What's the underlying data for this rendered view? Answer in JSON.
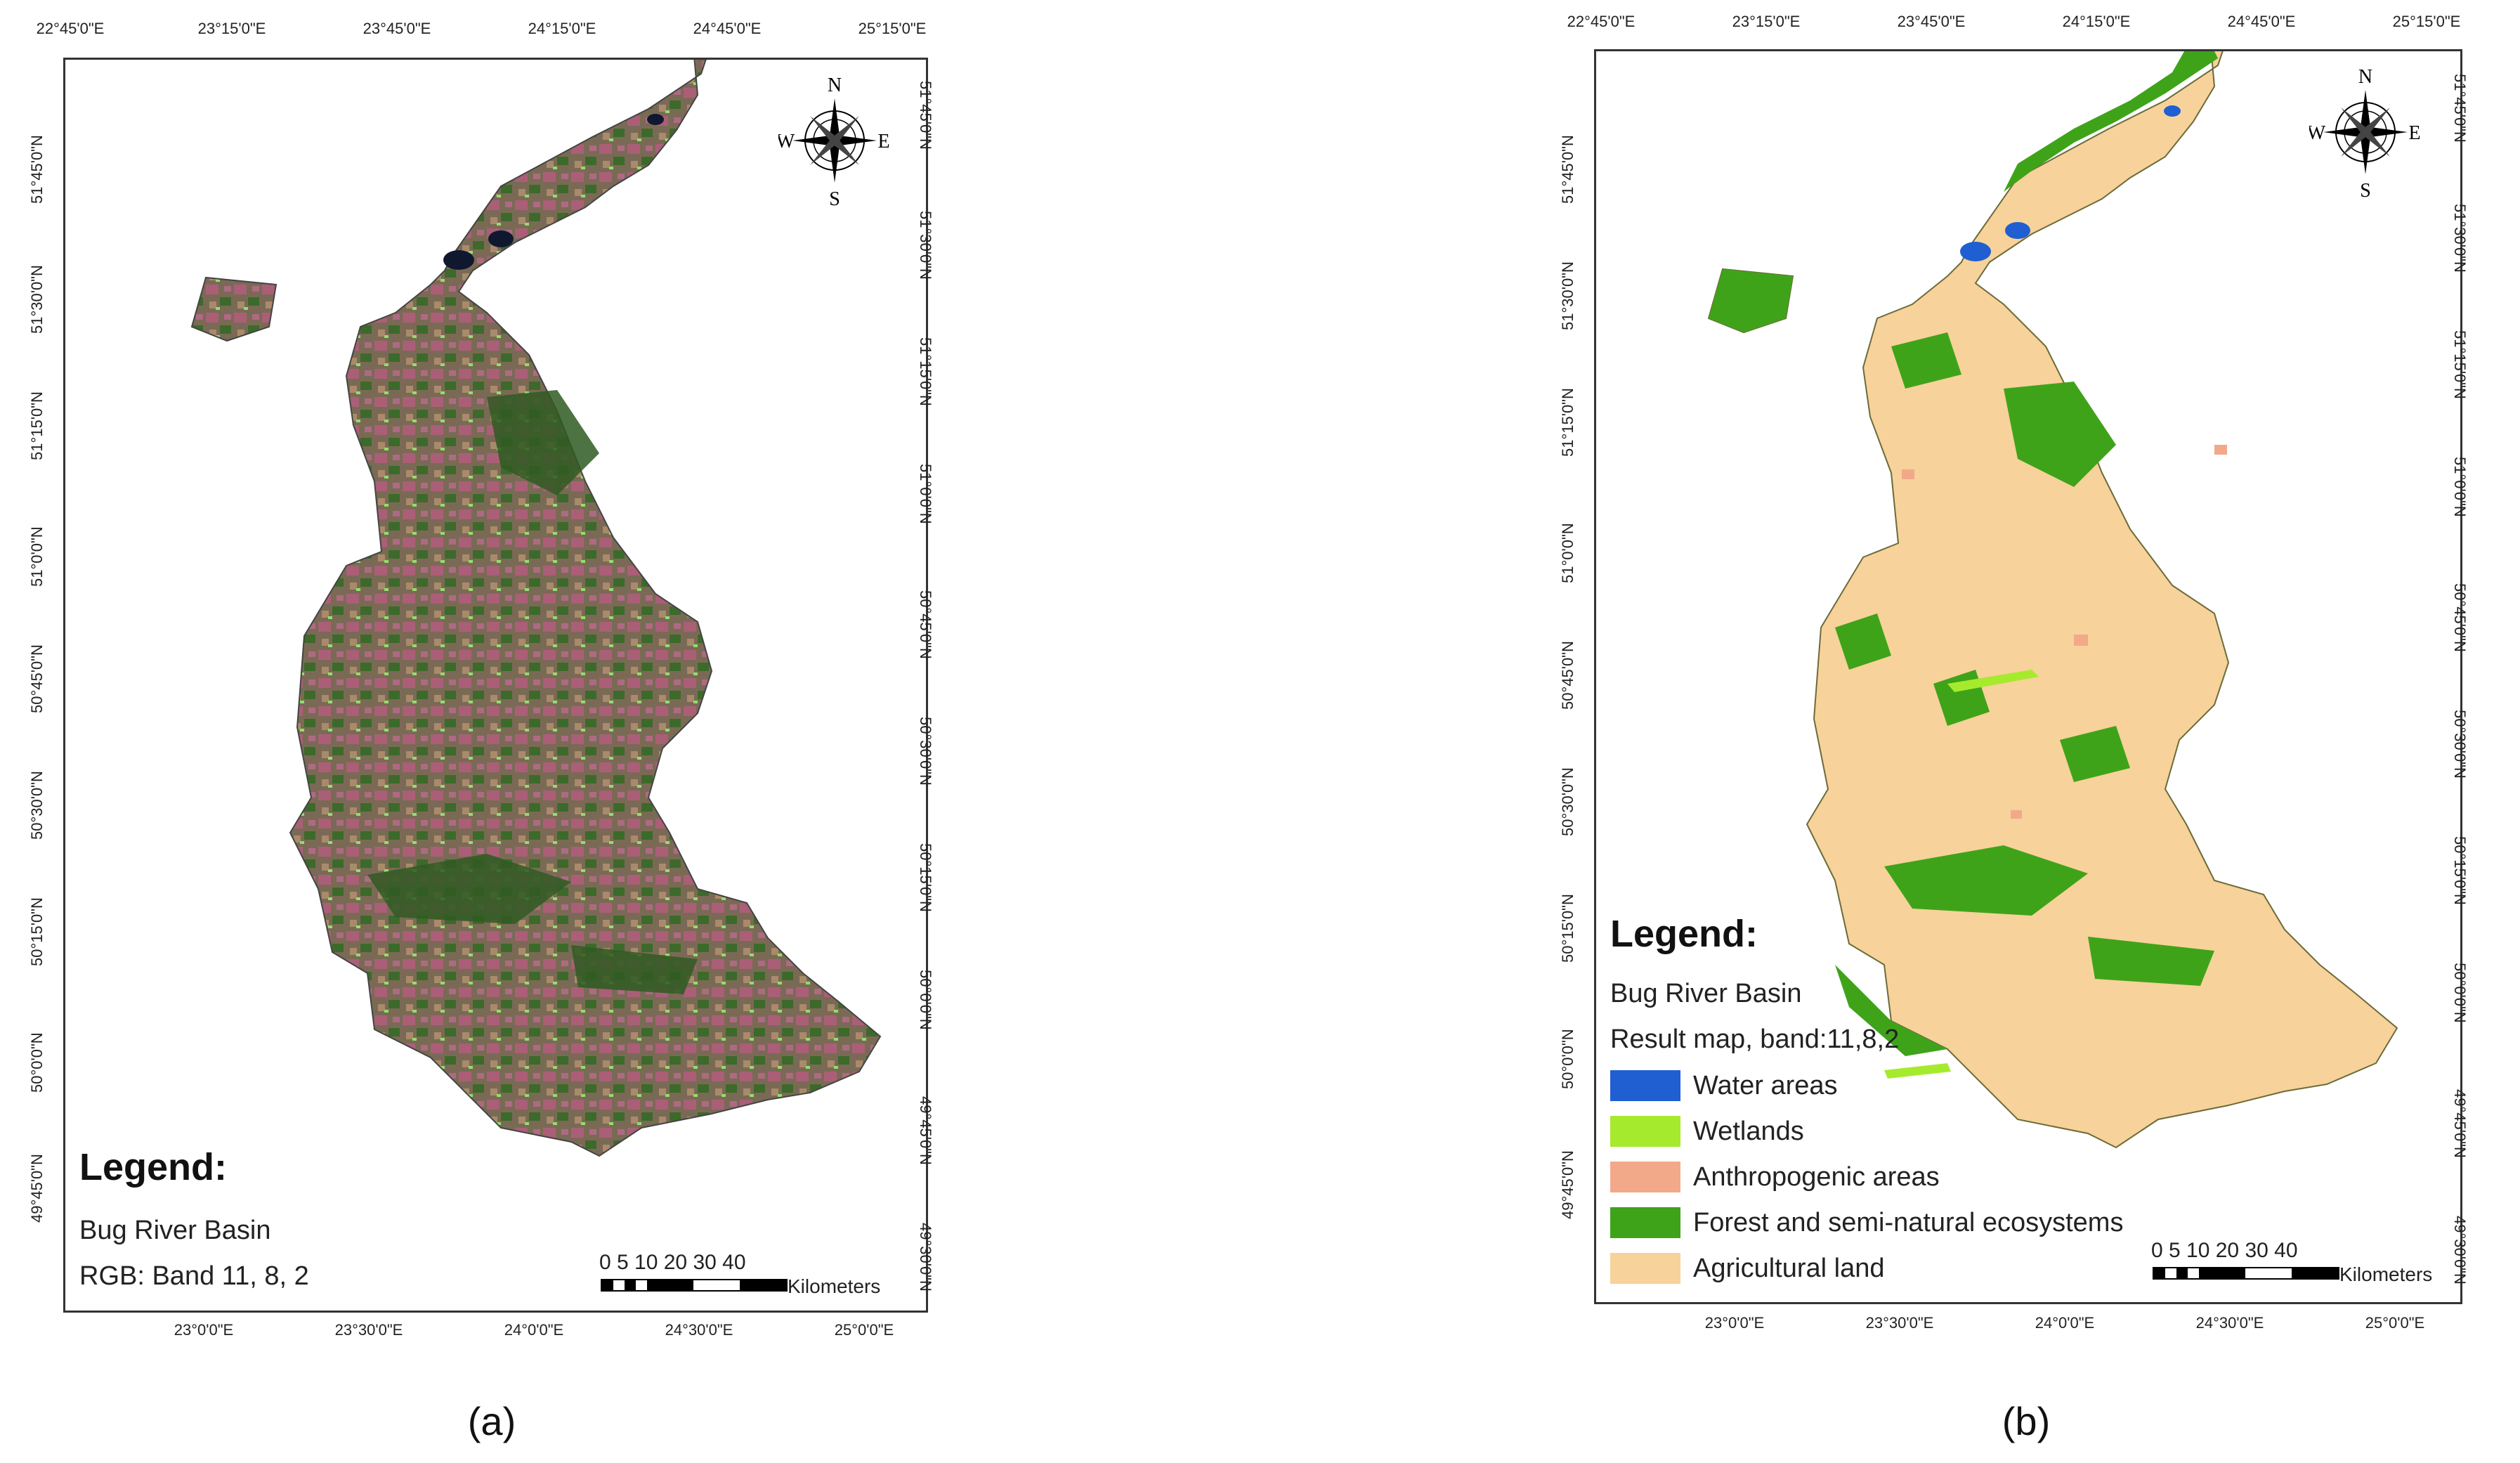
{
  "panels": [
    {
      "id": "a",
      "label": "(a)",
      "legend_title": "Legend:",
      "legend_lines": [
        "Bug River Basin",
        "RGB: Band 11, 8, 2"
      ],
      "top_ticks": [
        "22°45'0\"E",
        "23°15'0\"E",
        "23°45'0\"E",
        "24°15'0\"E",
        "24°45'0\"E",
        "25°15'0\"E"
      ],
      "bottom_ticks": [
        "23°0'0\"E",
        "23°30'0\"E",
        "24°0'0\"E",
        "24°30'0\"E",
        "25°0'0\"E"
      ],
      "left_ticks": [
        "51°45'0\"N",
        "51°30'0\"N",
        "51°15'0\"N",
        "51°0'0\"N",
        "50°45'0\"N",
        "50°30'0\"N",
        "50°15'0\"N",
        "50°0'0\"N",
        "49°45'0\"N"
      ],
      "right_ticks": [
        "51°45'0\"N",
        "51°30'0\"N",
        "51°15'0\"N",
        "51°0'0\"N",
        "50°45'0\"N",
        "50°30'0\"N",
        "50°15'0\"N",
        "50°0'0\"N",
        "49°45'0\"N",
        "49°30'0\"N"
      ],
      "scale_numbers": "0  5 10     20     30     40",
      "scale_unit": "Kilometers",
      "compass": {
        "n": "N",
        "s": "S",
        "e": "E",
        "w": "W"
      }
    },
    {
      "id": "b",
      "label": "(b)",
      "legend_title": "Legend:",
      "legend_lines": [
        "Bug River Basin",
        "Result map, band:11,8,2"
      ],
      "legend_items": [
        {
          "label": "Water areas",
          "color": "#1f5fd1"
        },
        {
          "label": "Wetlands",
          "color": "#a6ea2e"
        },
        {
          "label": "Anthropogenic areas",
          "color": "#f2a98a"
        },
        {
          "label": "Forest and semi-natural ecosystems",
          "color": "#3fa31a"
        },
        {
          "label": "Agricultural land",
          "color": "#f7d29a"
        }
      ],
      "top_ticks": [
        "22°45'0\"E",
        "23°15'0\"E",
        "23°45'0\"E",
        "24°15'0\"E",
        "24°45'0\"E",
        "25°15'0\"E"
      ],
      "bottom_ticks": [
        "23°0'0\"E",
        "23°30'0\"E",
        "24°0'0\"E",
        "24°30'0\"E",
        "25°0'0\"E"
      ],
      "left_ticks": [
        "51°45'0\"N",
        "51°30'0\"N",
        "51°15'0\"N",
        "51°0'0\"N",
        "50°45'0\"N",
        "50°30'0\"N",
        "50°15'0\"N",
        "50°0'0\"N",
        "49°45'0\"N"
      ],
      "right_ticks": [
        "51°45'0\"N",
        "51°30'0\"N",
        "51°15'0\"N",
        "51°0'0\"N",
        "50°45'0\"N",
        "50°30'0\"N",
        "50°15'0\"N",
        "50°0'0\"N",
        "49°45'0\"N",
        "49°30'0\"N"
      ],
      "scale_numbers": "0  5 10     20     30     40",
      "scale_unit": "Kilometers",
      "compass": {
        "n": "N",
        "s": "S",
        "e": "E",
        "w": "W"
      }
    }
  ],
  "colors": {
    "satellite_base": "#6b7a4a",
    "satellite_forest": "#2f5a22",
    "satellite_pink": "#c05a86",
    "satellite_water": "#101830",
    "result_agri": "#f7d29a",
    "result_forest": "#3fa31a",
    "result_water": "#1f5fd1",
    "result_wetland": "#a6ea2e",
    "result_anthro": "#f2a98a"
  }
}
